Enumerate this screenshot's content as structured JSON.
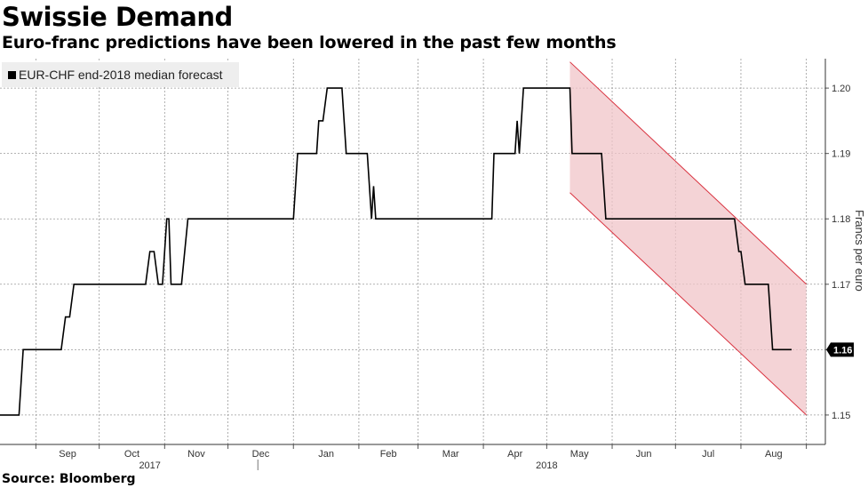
{
  "title": "Swissie Demand",
  "subtitle": "Euro-franc predictions have been lowered in the past few months",
  "source": "Source: Bloomberg",
  "chart_data": {
    "type": "line",
    "legend": "EUR-CHF end-2018 median forecast",
    "legend_position": "top-left",
    "ylabel": "Francs per euro",
    "yticks": [
      1.15,
      1.16,
      1.17,
      1.18,
      1.19,
      1.2
    ],
    "ylim": [
      1.1455,
      1.2045
    ],
    "x_month_labels": [
      "Sep",
      "Oct",
      "Nov",
      "Dec",
      "Jan",
      "Feb",
      "Mar",
      "Apr",
      "May",
      "Jun",
      "Jul",
      "Aug"
    ],
    "x_year_labels": [
      "2017",
      "2018"
    ],
    "last_value_label": "1.16",
    "grid": true,
    "colors": {
      "line": "#000000",
      "channel_fill": "#f0c4c8",
      "channel_edge": "#d9323f",
      "label_bg": "#000000"
    },
    "series": [
      {
        "values": [
          [
            "2017-08-15",
            1.15
          ],
          [
            "2017-08-24",
            1.15
          ],
          [
            "2017-08-26",
            1.16
          ],
          [
            "2017-09-13",
            1.16
          ],
          [
            "2017-09-15",
            1.165
          ],
          [
            "2017-09-17",
            1.165
          ],
          [
            "2017-09-19",
            1.17
          ],
          [
            "2017-10-23",
            1.17
          ],
          [
            "2017-10-25",
            1.175
          ],
          [
            "2017-10-27",
            1.175
          ],
          [
            "2017-10-29",
            1.17
          ],
          [
            "2017-10-31",
            1.17
          ],
          [
            "2017-11-02",
            1.18
          ],
          [
            "2017-11-03",
            1.18
          ],
          [
            "2017-11-04",
            1.17
          ],
          [
            "2017-11-09",
            1.17
          ],
          [
            "2017-11-12",
            1.18
          ],
          [
            "2018-01-01",
            1.18
          ],
          [
            "2018-01-03",
            1.19
          ],
          [
            "2018-01-12",
            1.19
          ],
          [
            "2018-01-13",
            1.195
          ],
          [
            "2018-01-15",
            1.195
          ],
          [
            "2018-01-17",
            1.2
          ],
          [
            "2018-01-24",
            1.2
          ],
          [
            "2018-01-26",
            1.19
          ],
          [
            "2018-02-05",
            1.19
          ],
          [
            "2018-02-07",
            1.18
          ],
          [
            "2018-02-08",
            1.185
          ],
          [
            "2018-02-09",
            1.18
          ],
          [
            "2018-04-05",
            1.18
          ],
          [
            "2018-04-06",
            1.19
          ],
          [
            "2018-04-16",
            1.19
          ],
          [
            "2018-04-17",
            1.195
          ],
          [
            "2018-04-18",
            1.19
          ],
          [
            "2018-04-20",
            1.2
          ],
          [
            "2018-05-12",
            1.2
          ],
          [
            "2018-05-13",
            1.19
          ],
          [
            "2018-05-27",
            1.19
          ],
          [
            "2018-05-29",
            1.18
          ],
          [
            "2018-07-29",
            1.18
          ],
          [
            "2018-07-31",
            1.175
          ],
          [
            "2018-08-01",
            1.175
          ],
          [
            "2018-08-03",
            1.17
          ],
          [
            "2018-08-14",
            1.17
          ],
          [
            "2018-08-16",
            1.16
          ],
          [
            "2018-08-25",
            1.16
          ]
        ]
      }
    ],
    "annotations": [
      {
        "type": "downward channel",
        "from": "2018-05-12",
        "to": "2018-09-01",
        "upper": [
          1.204,
          1.17
        ],
        "lower": [
          1.184,
          1.15
        ]
      }
    ]
  }
}
